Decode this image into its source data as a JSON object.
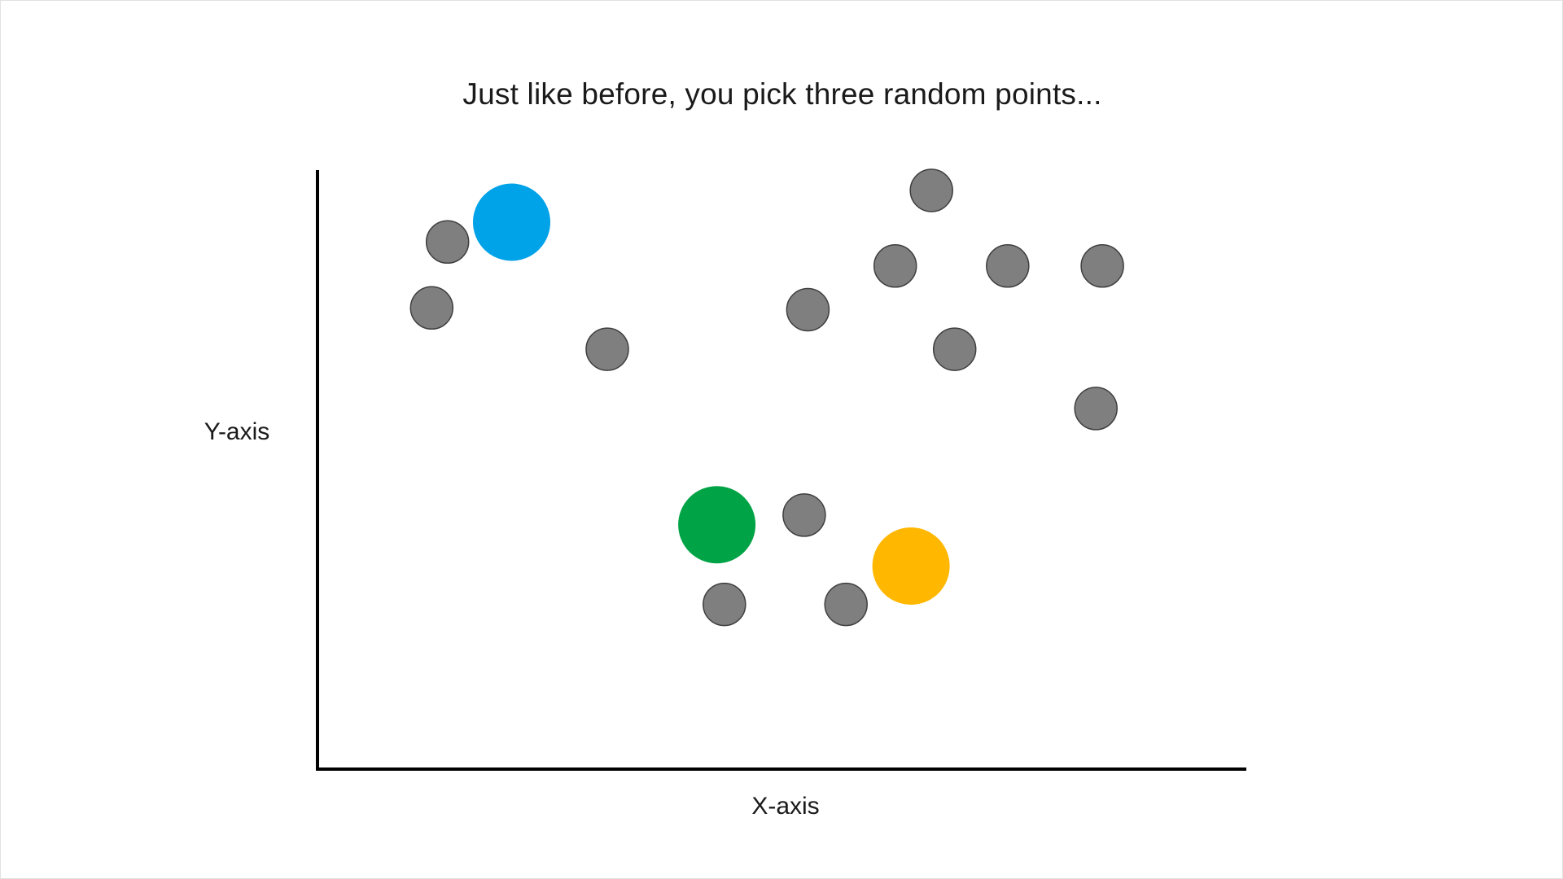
{
  "chart_data": {
    "type": "scatter",
    "title": "Just like before, you pick three random points...",
    "xlabel": "X-axis",
    "ylabel": "Y-axis",
    "xlim": [
      0,
      100
    ],
    "ylim": [
      0,
      100
    ],
    "grid": false,
    "legend": "none",
    "series": [
      {
        "color": "#7f7f7f",
        "points": [
          {
            "x": 14,
            "y": 88
          },
          {
            "x": 12.3,
            "y": 77
          },
          {
            "x": 31.2,
            "y": 70.1
          },
          {
            "x": 52.8,
            "y": 76.7
          },
          {
            "x": 66.1,
            "y": 96.6
          },
          {
            "x": 62.2,
            "y": 84
          },
          {
            "x": 74.3,
            "y": 84
          },
          {
            "x": 68.6,
            "y": 70.1
          },
          {
            "x": 84.5,
            "y": 84
          },
          {
            "x": 83.8,
            "y": 60.2
          },
          {
            "x": 52.4,
            "y": 42.4
          },
          {
            "x": 43.8,
            "y": 27.5
          },
          {
            "x": 56.9,
            "y": 27.5
          }
        ]
      },
      {
        "color": "#00a2e8",
        "points": [
          {
            "x": 20.9,
            "y": 91.3
          }
        ]
      },
      {
        "color": "#00a346",
        "points": [
          {
            "x": 43,
            "y": 40.8
          }
        ]
      },
      {
        "color": "#ffb700",
        "points": [
          {
            "x": 63.9,
            "y": 33.9
          }
        ]
      }
    ]
  }
}
